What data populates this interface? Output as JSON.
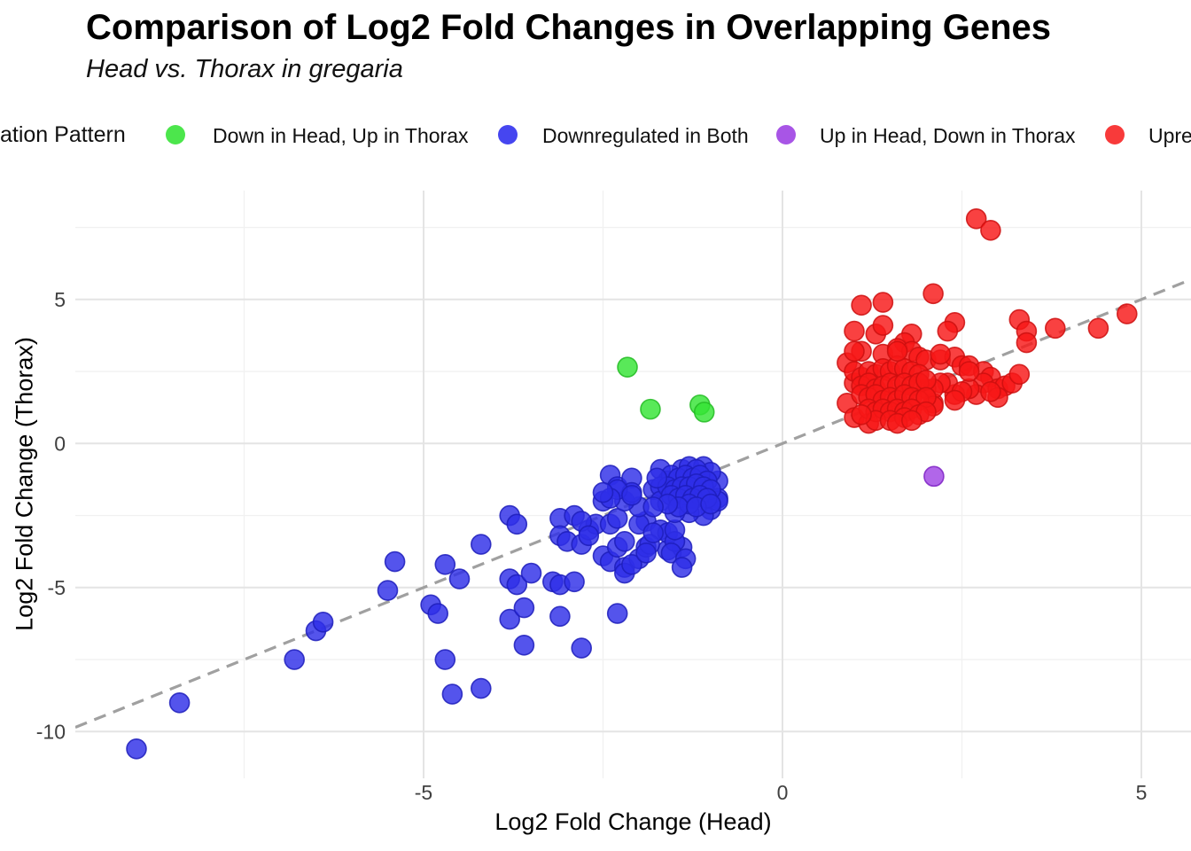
{
  "header": {
    "title": "Comparison of Log2 Fold Changes in Overlapping Genes",
    "subtitle": "Head vs. Thorax in gregaria"
  },
  "legend": {
    "title": "ation Pattern",
    "items": [
      {
        "label": "Down in Head, Up in Thorax",
        "color": "#4ce64c"
      },
      {
        "label": "Downregulated in Both",
        "color": "#4646f0"
      },
      {
        "label": "Up in Head, Down in Thorax",
        "color": "#a855e6"
      },
      {
        "label": "Upre",
        "color": "#f83a3a"
      }
    ]
  },
  "axes": {
    "xlabel": "Log2 Fold Change (Head)",
    "ylabel": "Log2 Fold Change (Thorax)"
  },
  "chart_data": {
    "type": "scatter",
    "title": "Comparison of Log2 Fold Changes in Overlapping Genes",
    "subtitle": "Head vs. Thorax in gregaria",
    "xlabel": "Log2 Fold Change (Head)",
    "ylabel": "Log2 Fold Change (Thorax)",
    "xlim": [
      -9.85,
      5.69
    ],
    "ylim": [
      -11.63,
      8.78
    ],
    "x_ticks": [
      -5,
      0,
      5
    ],
    "y_ticks": [
      5,
      0,
      -5,
      -10
    ],
    "x_minor_ticks": [
      -7.5,
      -2.5,
      2.5
    ],
    "y_minor_ticks": [
      7.5,
      2.5,
      -2.5,
      -7.5
    ],
    "grid": true,
    "legend_position": "top",
    "identity_line": {
      "show": true,
      "style": "dashed",
      "color": "#a0a0a0"
    },
    "series": [
      {
        "name": "Down in Head, Up in Thorax",
        "fill": "#35e435",
        "stroke": "#22bb22",
        "points": [
          [
            -2.16,
            2.65
          ],
          [
            -1.84,
            1.19
          ],
          [
            -1.15,
            1.34
          ],
          [
            -1.09,
            1.09
          ]
        ]
      },
      {
        "name": "Downregulated in Both",
        "fill": "#2e2ee8",
        "stroke": "#1d1dbb",
        "points": [
          [
            -9.0,
            -10.6
          ],
          [
            -8.4,
            -9.0
          ],
          [
            -6.8,
            -7.5
          ],
          [
            -6.5,
            -6.5
          ],
          [
            -6.4,
            -6.2
          ],
          [
            -5.5,
            -5.1
          ],
          [
            -5.4,
            -4.1
          ],
          [
            -4.9,
            -5.6
          ],
          [
            -4.8,
            -5.9
          ],
          [
            -4.7,
            -4.2
          ],
          [
            -4.5,
            -4.7
          ],
          [
            -4.7,
            -7.5
          ],
          [
            -4.6,
            -8.7
          ],
          [
            -4.2,
            -8.5
          ],
          [
            -4.2,
            -3.5
          ],
          [
            -3.8,
            -2.5
          ],
          [
            -3.7,
            -2.8
          ],
          [
            -3.8,
            -4.7
          ],
          [
            -3.7,
            -4.9
          ],
          [
            -3.5,
            -4.5
          ],
          [
            -3.8,
            -6.1
          ],
          [
            -3.6,
            -5.7
          ],
          [
            -3.6,
            -7.0
          ],
          [
            -3.2,
            -4.8
          ],
          [
            -3.1,
            -4.9
          ],
          [
            -2.9,
            -4.8
          ],
          [
            -3.1,
            -6.0
          ],
          [
            -2.8,
            -7.1
          ],
          [
            -3.1,
            -2.6
          ],
          [
            -2.9,
            -2.5
          ],
          [
            -3.1,
            -3.2
          ],
          [
            -3.0,
            -3.4
          ],
          [
            -2.8,
            -3.5
          ],
          [
            -2.7,
            -3.0
          ],
          [
            -2.6,
            -2.8
          ],
          [
            -2.8,
            -2.7
          ],
          [
            -2.5,
            -2.0
          ],
          [
            -2.4,
            -2.8
          ],
          [
            -2.5,
            -3.9
          ],
          [
            -2.4,
            -4.1
          ],
          [
            -2.3,
            -3.6
          ],
          [
            -2.3,
            -5.9
          ],
          [
            -2.7,
            -3.2
          ],
          [
            -2.2,
            -4.3
          ],
          [
            -2.2,
            -4.5
          ],
          [
            -2.0,
            -4.0
          ],
          [
            -2.1,
            -4.2
          ],
          [
            -1.9,
            -3.6
          ],
          [
            -1.6,
            -3.7
          ],
          [
            -1.4,
            -3.6
          ],
          [
            -1.9,
            -2.7
          ],
          [
            -2.0,
            -2.8
          ],
          [
            -1.7,
            -3.0
          ],
          [
            -1.6,
            -3.1
          ],
          [
            -2.3,
            -2.6
          ],
          [
            -2.0,
            -2.2
          ],
          [
            -2.2,
            -2.0
          ],
          [
            -1.5,
            -3.4
          ],
          [
            -1.85,
            -3.5
          ],
          [
            -1.55,
            -3.8
          ],
          [
            -1.9,
            -3.8
          ],
          [
            -1.35,
            -4.0
          ],
          [
            -1.4,
            -4.3
          ],
          [
            -2.2,
            -3.4
          ],
          [
            -1.5,
            -3.0
          ],
          [
            -1.8,
            -3.1
          ],
          [
            -2.4,
            -1.1
          ],
          [
            -2.3,
            -1.5
          ],
          [
            -2.1,
            -1.2
          ],
          [
            -2.1,
            -1.7
          ],
          [
            -1.7,
            -0.9
          ],
          [
            -1.6,
            -1.3
          ],
          [
            -1.8,
            -1.6
          ],
          [
            -1.4,
            -0.9
          ],
          [
            -2.3,
            -1.6
          ],
          [
            -2.1,
            -1.8
          ],
          [
            -2.4,
            -1.9
          ],
          [
            -1.7,
            -1.5
          ],
          [
            -1.3,
            -0.8
          ],
          [
            -1.1,
            -0.8
          ],
          [
            -2.5,
            -1.7
          ],
          [
            -0.9,
            -1.3
          ],
          [
            -0.9,
            -1.9
          ],
          [
            -1.0,
            -2.3
          ],
          [
            -1.1,
            -2.5
          ],
          [
            -1.3,
            -2.4
          ],
          [
            -1.5,
            -2.4
          ],
          [
            -1.7,
            -2.0
          ],
          [
            -0.9,
            -2.0
          ],
          [
            -1.0,
            -1.0
          ],
          [
            -1.2,
            -0.9
          ],
          [
            -1.55,
            -1.1
          ],
          [
            -1.45,
            -1.2
          ],
          [
            -1.35,
            -1.1
          ],
          [
            -1.25,
            -1.2
          ],
          [
            -1.15,
            -1.1
          ],
          [
            -1.05,
            -1.3
          ],
          [
            -1.6,
            -1.5
          ],
          [
            -1.5,
            -1.6
          ],
          [
            -1.4,
            -1.5
          ],
          [
            -1.3,
            -1.5
          ],
          [
            -1.2,
            -1.4
          ],
          [
            -1.1,
            -1.5
          ],
          [
            -1.0,
            -1.6
          ],
          [
            -1.55,
            -1.8
          ],
          [
            -1.45,
            -1.9
          ],
          [
            -1.35,
            -1.8
          ],
          [
            -1.25,
            -1.9
          ],
          [
            -1.15,
            -1.8
          ],
          [
            -1.05,
            -1.9
          ],
          [
            -1.3,
            -2.1
          ],
          [
            -1.45,
            -2.2
          ],
          [
            -1.2,
            -2.2
          ],
          [
            -1.6,
            -2.1
          ],
          [
            -1.0,
            -2.1
          ],
          [
            -1.75,
            -1.2
          ],
          [
            -1.8,
            -2.2
          ]
        ]
      },
      {
        "name": "Up in Head, Down in Thorax",
        "fill": "#a044e4",
        "stroke": "#7e22c4",
        "points": [
          [
            2.11,
            -1.14
          ]
        ]
      },
      {
        "name": "Upre",
        "fill": "#f81717",
        "stroke": "#cc0f0f",
        "points": [
          [
            2.7,
            7.8
          ],
          [
            2.9,
            7.4
          ],
          [
            2.1,
            5.2
          ],
          [
            1.1,
            4.8
          ],
          [
            1.4,
            4.9
          ],
          [
            2.4,
            4.2
          ],
          [
            2.3,
            3.9
          ],
          [
            3.3,
            4.3
          ],
          [
            3.4,
            3.9
          ],
          [
            3.4,
            3.5
          ],
          [
            3.8,
            4.0
          ],
          [
            4.4,
            4.0
          ],
          [
            4.8,
            4.5
          ],
          [
            1.0,
            3.9
          ],
          [
            1.3,
            3.8
          ],
          [
            1.4,
            4.1
          ],
          [
            1.8,
            3.8
          ],
          [
            1.1,
            3.2
          ],
          [
            1.4,
            3.1
          ],
          [
            1.7,
            3.5
          ],
          [
            1.6,
            3.3
          ],
          [
            1.8,
            3.2
          ],
          [
            1.9,
            3.0
          ],
          [
            2.0,
            2.9
          ],
          [
            2.2,
            2.9
          ],
          [
            2.4,
            3.0
          ],
          [
            2.2,
            3.1
          ],
          [
            2.5,
            2.7
          ],
          [
            2.6,
            2.7
          ],
          [
            2.8,
            2.5
          ],
          [
            2.9,
            2.3
          ],
          [
            2.8,
            2.1
          ],
          [
            3.0,
            1.9
          ],
          [
            3.1,
            2.0
          ],
          [
            3.0,
            1.6
          ],
          [
            2.7,
            1.7
          ],
          [
            2.6,
            1.9
          ],
          [
            2.4,
            1.7
          ],
          [
            2.3,
            2.1
          ],
          [
            2.2,
            2.1
          ],
          [
            2.0,
            1.9
          ],
          [
            2.1,
            1.4
          ],
          [
            2.9,
            1.8
          ],
          [
            3.2,
            2.1
          ],
          [
            3.3,
            2.4
          ],
          [
            2.6,
            2.5
          ],
          [
            2.5,
            1.8
          ],
          [
            2.4,
            1.5
          ],
          [
            2.1,
            1.9
          ],
          [
            2.1,
            1.3
          ],
          [
            0.9,
            2.8
          ],
          [
            1.0,
            2.1
          ],
          [
            0.9,
            1.4
          ],
          [
            1.0,
            0.9
          ],
          [
            1.2,
            0.7
          ],
          [
            1.0,
            2.5
          ],
          [
            1.1,
            2.3
          ],
          [
            1.2,
            2.5
          ],
          [
            1.3,
            2.4
          ],
          [
            1.4,
            2.6
          ],
          [
            1.5,
            2.5
          ],
          [
            1.6,
            2.7
          ],
          [
            1.7,
            2.6
          ],
          [
            1.8,
            2.5
          ],
          [
            1.9,
            2.4
          ],
          [
            1.1,
            2.0
          ],
          [
            1.2,
            2.1
          ],
          [
            1.3,
            1.9
          ],
          [
            1.4,
            2.0
          ],
          [
            1.5,
            2.1
          ],
          [
            1.6,
            2.0
          ],
          [
            1.7,
            2.1
          ],
          [
            1.8,
            2.0
          ],
          [
            1.9,
            2.1
          ],
          [
            2.0,
            2.2
          ],
          [
            1.1,
            1.7
          ],
          [
            1.2,
            1.6
          ],
          [
            1.3,
            1.7
          ],
          [
            1.4,
            1.5
          ],
          [
            1.5,
            1.6
          ],
          [
            1.6,
            1.5
          ],
          [
            1.7,
            1.7
          ],
          [
            1.8,
            1.6
          ],
          [
            1.9,
            1.5
          ],
          [
            2.0,
            1.6
          ],
          [
            1.2,
            1.2
          ],
          [
            1.3,
            1.1
          ],
          [
            1.4,
            1.2
          ],
          [
            1.5,
            1.1
          ],
          [
            1.6,
            1.2
          ],
          [
            1.7,
            1.1
          ],
          [
            1.8,
            1.2
          ],
          [
            1.3,
            0.8
          ],
          [
            1.5,
            0.8
          ],
          [
            1.7,
            0.9
          ],
          [
            1.9,
            1.0
          ],
          [
            1.6,
            0.7
          ],
          [
            1.1,
            1.0
          ],
          [
            2.0,
            1.1
          ],
          [
            1.8,
            0.8
          ],
          [
            1.0,
            3.2
          ],
          [
            1.6,
            3.2
          ]
        ]
      }
    ]
  }
}
